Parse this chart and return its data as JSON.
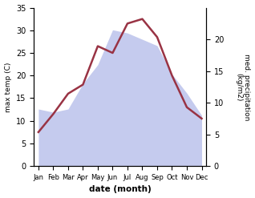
{
  "months": [
    "Jan",
    "Feb",
    "Mar",
    "Apr",
    "May",
    "Jun",
    "Jul",
    "Aug",
    "Sep",
    "Oct",
    "Nov",
    "Dec"
  ],
  "temp": [
    7.5,
    11.5,
    16.0,
    18.0,
    26.5,
    25.0,
    31.5,
    32.5,
    28.5,
    20.0,
    13.0,
    10.5
  ],
  "precip": [
    9.0,
    8.5,
    9.0,
    13.0,
    16.0,
    21.5,
    21.0,
    20.0,
    19.0,
    14.5,
    11.5,
    8.0
  ],
  "temp_color": "#993344",
  "precip_fill_color": "#c5cbee",
  "ylabel_left": "max temp (C)",
  "ylabel_right": "med. precipitation\n(kg/m2)",
  "xlabel": "date (month)",
  "ylim_left": [
    0,
    35
  ],
  "ylim_right": [
    0,
    25
  ],
  "yticks_left": [
    0,
    5,
    10,
    15,
    20,
    25,
    30,
    35
  ],
  "yticks_right": [
    0,
    5,
    10,
    15,
    20
  ],
  "background_color": "#ffffff"
}
